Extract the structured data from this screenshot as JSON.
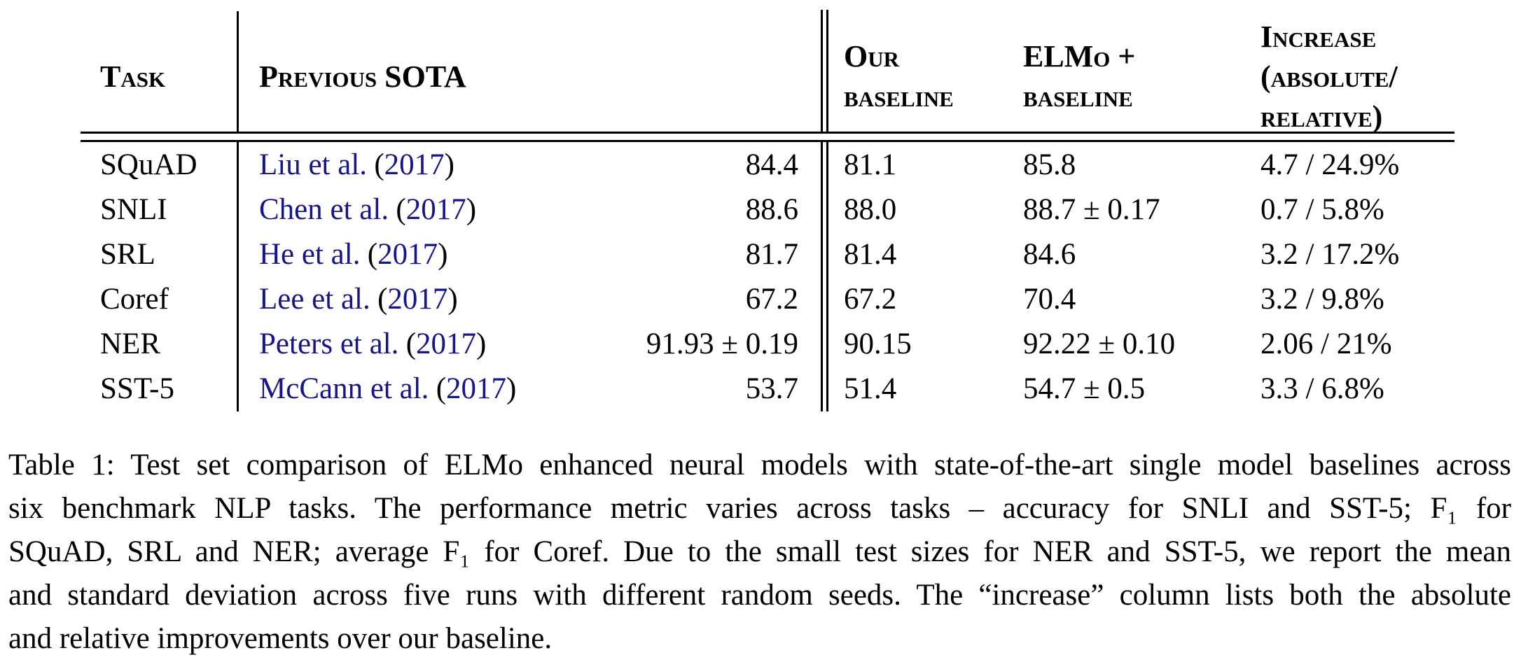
{
  "colors": {
    "citation_blue": "#15158c",
    "text": "#000000",
    "background": "#ffffff"
  },
  "table": {
    "headers": {
      "task": "Task",
      "previous_sota": "Previous SOTA",
      "our_baseline": [
        "Our",
        "baseline"
      ],
      "elmo_baseline": [
        "ELMo +",
        "baseline"
      ],
      "increase": [
        "Increase",
        "(absolute/",
        "relative)"
      ]
    },
    "punctuation": {
      "open_paren": "(",
      "close_paren": ")"
    },
    "rows": [
      {
        "task": "SQuAD",
        "cite": "Liu et al.",
        "year": "2017",
        "sota": "84.4",
        "ours": "81.1",
        "elmo": "85.8",
        "increase": "4.7 / 24.9%"
      },
      {
        "task": "SNLI",
        "cite": "Chen et al.",
        "year": "2017",
        "sota": "88.6",
        "ours": "88.0",
        "elmo": "88.7 ± 0.17",
        "increase": "0.7 / 5.8%"
      },
      {
        "task": "SRL",
        "cite": "He et al.",
        "year": "2017",
        "sota": "81.7",
        "ours": "81.4",
        "elmo": "84.6",
        "increase": "3.2 / 17.2%"
      },
      {
        "task": "Coref",
        "cite": "Lee et al.",
        "year": "2017",
        "sota": "67.2",
        "ours": "67.2",
        "elmo": "70.4",
        "increase": "3.2 / 9.8%"
      },
      {
        "task": "NER",
        "cite": "Peters et al.",
        "year": "2017",
        "sota": "91.93 ± 0.19",
        "ours": "90.15",
        "elmo": "92.22 ± 0.10",
        "increase": "2.06 / 21%"
      },
      {
        "task": "SST-5",
        "cite": "McCann et al.",
        "year": "2017",
        "sota": "53.7",
        "ours": "51.4",
        "elmo": "54.7 ± 0.5",
        "increase": "3.3 / 6.8%"
      }
    ]
  },
  "caption": {
    "lines": [
      "Table 1: Test set comparison of ELMo enhanced neural models with state-of-the-art single model baselines across",
      "six benchmark NLP tasks. The performance metric varies across tasks – accuracy for SNLI and SST-5; F₁ for",
      "SQuAD, SRL and NER; average F₁ for Coref. Due to the small test sizes for NER and SST-5, we report the mean",
      "and standard deviation across five runs with different random seeds. The “increase” column lists both the absolute",
      "and relative improvements over our baseline."
    ]
  }
}
